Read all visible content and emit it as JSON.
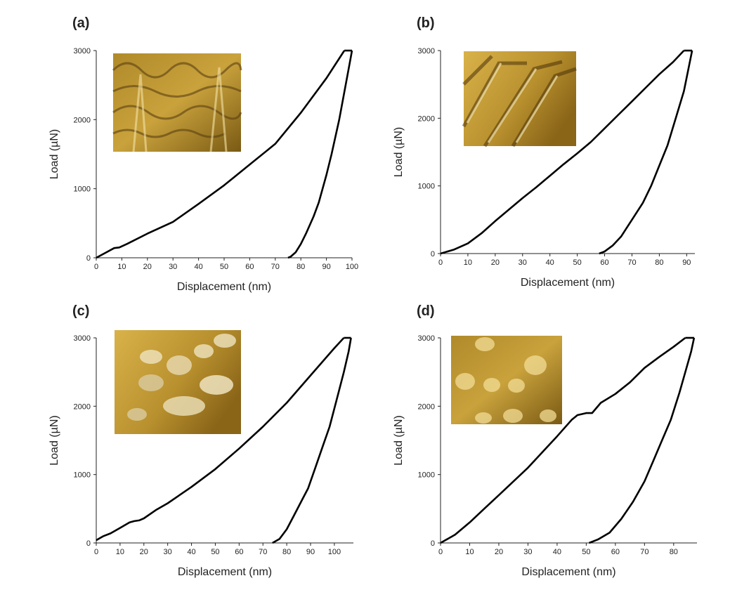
{
  "chart_data": [
    {
      "panel": "(a)",
      "type": "line",
      "xlabel": "Displacement (nm)",
      "ylabel": "Load (µN)",
      "xlim": [
        0,
        100
      ],
      "ylim": [
        0,
        3000
      ],
      "xticks": [
        "0",
        "10",
        "20",
        "30",
        "40",
        "50",
        "60",
        "70",
        "80",
        "90",
        "100"
      ],
      "yticks": [
        "0",
        "1000",
        "2000",
        "3000"
      ],
      "inset": "afm-topography-inset",
      "series": [
        {
          "role": "loading",
          "x": [
            0,
            4,
            7,
            9,
            12,
            20,
            30,
            40,
            50,
            60,
            70,
            80,
            90,
            97
          ],
          "y": [
            0,
            80,
            140,
            150,
            200,
            350,
            520,
            780,
            1050,
            1350,
            1650,
            2100,
            2600,
            3000
          ]
        },
        {
          "role": "hold",
          "x": [
            97,
            100
          ],
          "y": [
            3000,
            3000
          ]
        },
        {
          "role": "unloading",
          "x": [
            100,
            99,
            97,
            95,
            92,
            90,
            87,
            85,
            82,
            80,
            78,
            76,
            75
          ],
          "y": [
            3000,
            2800,
            2400,
            2000,
            1500,
            1200,
            800,
            600,
            350,
            200,
            80,
            15,
            0
          ]
        }
      ]
    },
    {
      "panel": "(b)",
      "type": "line",
      "xlabel": "Displacement (nm)",
      "ylabel": "Load (µN)",
      "xlim": [
        0,
        93
      ],
      "ylim": [
        0,
        3000
      ],
      "xticks": [
        "0",
        "10",
        "20",
        "30",
        "40",
        "50",
        "60",
        "70",
        "80",
        "90"
      ],
      "yticks": [
        "0",
        "1000",
        "2000",
        "3000"
      ],
      "inset": "afm-topography-inset",
      "series": [
        {
          "role": "loading",
          "x": [
            0,
            5,
            10,
            15,
            20,
            25,
            30,
            35,
            40,
            45,
            50,
            55,
            60,
            65,
            70,
            75,
            80,
            85,
            89
          ],
          "y": [
            0,
            60,
            150,
            300,
            480,
            650,
            820,
            980,
            1150,
            1320,
            1480,
            1650,
            1850,
            2050,
            2250,
            2450,
            2650,
            2830,
            3000
          ]
        },
        {
          "role": "hold",
          "x": [
            89,
            92
          ],
          "y": [
            3000,
            3000
          ]
        },
        {
          "role": "unloading",
          "x": [
            92,
            91,
            89,
            86,
            83,
            80,
            77,
            74,
            70,
            66,
            63,
            60,
            58
          ],
          "y": [
            3000,
            2800,
            2400,
            2000,
            1600,
            1300,
            1000,
            750,
            500,
            250,
            120,
            30,
            0
          ]
        }
      ]
    },
    {
      "panel": "(c)",
      "type": "line",
      "xlabel": "Displacement (nm)",
      "ylabel": "Load (µN)",
      "xlim": [
        0,
        108
      ],
      "ylim": [
        0,
        3000
      ],
      "xticks": [
        "0",
        "10",
        "20",
        "30",
        "40",
        "50",
        "60",
        "70",
        "80",
        "90",
        "100"
      ],
      "yticks": [
        "0",
        "1000",
        "2000",
        "3000"
      ],
      "inset": "afm-topography-inset",
      "series": [
        {
          "role": "loading",
          "x": [
            0,
            3,
            6,
            10,
            14,
            16,
            18,
            20,
            25,
            30,
            40,
            50,
            60,
            70,
            80,
            90,
            100,
            104
          ],
          "y": [
            40,
            100,
            140,
            220,
            300,
            320,
            330,
            360,
            480,
            580,
            820,
            1080,
            1380,
            1700,
            2050,
            2450,
            2850,
            3000
          ]
        },
        {
          "role": "hold",
          "x": [
            104,
            107
          ],
          "y": [
            3000,
            3000
          ]
        },
        {
          "role": "unloading",
          "x": [
            107,
            106,
            104,
            101,
            98,
            95,
            92,
            89,
            86,
            83,
            80,
            77,
            74
          ],
          "y": [
            3000,
            2800,
            2500,
            2100,
            1700,
            1400,
            1100,
            800,
            600,
            400,
            200,
            60,
            0
          ]
        }
      ]
    },
    {
      "panel": "(d)",
      "type": "line",
      "xlabel": "Displacement (nm)",
      "ylabel": "Load (µN)",
      "xlim": [
        0,
        88
      ],
      "ylim": [
        0,
        3000
      ],
      "xticks": [
        "0",
        "10",
        "20",
        "30",
        "40",
        "50",
        "60",
        "70",
        "80"
      ],
      "yticks": [
        "0",
        "1000",
        "2000",
        "3000"
      ],
      "inset": "afm-topography-inset",
      "series": [
        {
          "role": "loading",
          "x": [
            0,
            5,
            10,
            15,
            20,
            25,
            30,
            35,
            40,
            45,
            47,
            50,
            52,
            55,
            60,
            65,
            70,
            75,
            80,
            84
          ],
          "y": [
            0,
            120,
            300,
            500,
            700,
            900,
            1100,
            1330,
            1560,
            1800,
            1870,
            1900,
            1900,
            2050,
            2180,
            2350,
            2560,
            2720,
            2870,
            3000
          ]
        },
        {
          "role": "hold",
          "x": [
            84,
            87
          ],
          "y": [
            3000,
            3000
          ]
        },
        {
          "role": "unloading",
          "x": [
            87,
            86,
            84,
            82,
            79,
            76,
            73,
            70,
            66,
            62,
            58,
            54,
            51
          ],
          "y": [
            3000,
            2800,
            2500,
            2200,
            1800,
            1500,
            1200,
            900,
            600,
            350,
            150,
            50,
            0
          ]
        }
      ]
    }
  ]
}
